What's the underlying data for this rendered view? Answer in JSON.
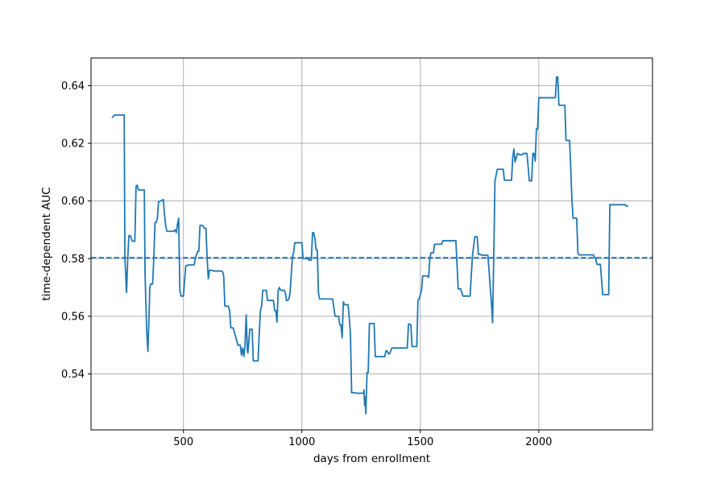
{
  "chart_data": {
    "type": "line",
    "title": "",
    "xlabel": "days from enrollment",
    "ylabel": "time-dependent AUC",
    "xlim": [
      110,
      2480
    ],
    "ylim": [
      0.5206,
      0.6496
    ],
    "xticks": [
      500,
      1000,
      1500,
      2000
    ],
    "xtick_labels": [
      "500",
      "1000",
      "1500",
      "2000"
    ],
    "yticks": [
      0.54,
      0.56,
      0.58,
      0.6,
      0.62,
      0.64
    ],
    "ytick_labels": [
      "0.54",
      "0.56",
      "0.58",
      "0.60",
      "0.62",
      "0.64"
    ],
    "grid": true,
    "legend": "none",
    "colors": {
      "line": "#1f77b4",
      "grid": "#b0b0b0",
      "axes": "#000000"
    },
    "reference_line": {
      "y": 0.5803,
      "style": "dashed"
    },
    "series": [
      {
        "x": [
          200,
          210,
          215,
          250,
          253,
          260,
          265,
          270,
          275,
          285,
          290,
          295,
          300,
          305,
          310,
          335,
          338,
          345,
          350,
          355,
          358,
          362,
          370,
          375,
          380,
          385,
          390,
          395,
          400,
          415,
          420,
          425,
          430,
          460,
          465,
          470,
          475,
          480,
          485,
          490,
          500,
          510,
          512,
          520,
          545,
          550,
          560,
          565,
          570,
          575,
          580,
          590,
          595,
          600,
          605,
          610,
          620,
          625,
          630,
          640,
          660,
          665,
          670,
          675,
          680,
          690,
          695,
          700,
          710,
          715,
          720,
          730,
          740,
          745,
          750,
          755,
          760,
          765,
          770,
          772,
          775,
          780,
          785,
          790,
          795,
          800,
          803,
          815,
          820,
          825,
          830,
          835,
          845,
          850,
          855,
          870,
          875,
          880,
          885,
          890,
          895,
          900,
          905,
          910,
          915,
          920,
          925,
          930,
          935,
          940,
          945,
          950,
          960,
          965,
          970,
          975,
          980,
          985,
          990,
          995,
          1000,
          1005,
          1010,
          1020,
          1025,
          1030,
          1035,
          1040,
          1045,
          1050,
          1055,
          1060,
          1065,
          1070,
          1075,
          1080,
          1085,
          1090,
          1095,
          1100,
          1110,
          1120,
          1130,
          1140,
          1145,
          1150,
          1155,
          1160,
          1165,
          1170,
          1175,
          1180,
          1185,
          1190,
          1195,
          1200,
          1205,
          1210,
          1220,
          1230,
          1250,
          1255,
          1260,
          1262,
          1265,
          1268,
          1270,
          1275,
          1280,
          1285,
          1290,
          1300,
          1305,
          1310,
          1320,
          1330,
          1340,
          1345,
          1350,
          1355,
          1360,
          1365,
          1370,
          1380,
          1385,
          1390,
          1400,
          1420,
          1430,
          1435,
          1440,
          1445,
          1450,
          1455,
          1460,
          1465,
          1470,
          1475,
          1480,
          1485,
          1490,
          1495,
          1500,
          1505,
          1510,
          1520,
          1525,
          1530,
          1535,
          1540,
          1545,
          1550,
          1555,
          1560,
          1570,
          1580,
          1590,
          1595,
          1600,
          1610,
          1620,
          1630,
          1640,
          1645,
          1650,
          1660,
          1665,
          1670,
          1680,
          1690,
          1700,
          1710,
          1720,
          1730,
          1740,
          1745,
          1750,
          1760,
          1765,
          1770,
          1775,
          1780,
          1785,
          1790,
          1795,
          1800,
          1802,
          1805,
          1810,
          1815,
          1820,
          1825,
          1830,
          1840,
          1850,
          1855,
          1860,
          1865,
          1870,
          1875,
          1880,
          1885,
          1890,
          1895,
          1900,
          1910,
          1920,
          1930,
          1935,
          1940,
          1945,
          1950,
          1955,
          1960,
          1965,
          1970,
          1975,
          1980,
          1985,
          1990,
          1995,
          2000,
          2010,
          2020,
          2030,
          2040,
          2050,
          2055,
          2060,
          2065,
          2070,
          2075,
          2080,
          2085,
          2090,
          2095,
          2100,
          2105,
          2110,
          2115,
          2120,
          2125,
          2130,
          2135,
          2140,
          2145,
          2150,
          2155,
          2160,
          2165,
          2170,
          2175,
          2180,
          2185,
          2190,
          2195,
          2200,
          2210,
          2220,
          2230,
          2240,
          2245,
          2250,
          2255,
          2260,
          2270,
          2280,
          2285,
          2290,
          2295,
          2300,
          2310,
          2320,
          2330,
          2340,
          2350,
          2360,
          2365,
          2370,
          2375
        ],
        "y": [
          0.629,
          0.6298,
          0.6298,
          0.6298,
          0.58,
          0.5683,
          0.58,
          0.588,
          0.588,
          0.586,
          0.586,
          0.586,
          0.605,
          0.6055,
          0.6038,
          0.6038,
          0.5748,
          0.555,
          0.5478,
          0.56,
          0.57,
          0.5712,
          0.5712,
          0.58,
          0.5925,
          0.5925,
          0.594,
          0.5998,
          0.5998,
          0.6005,
          0.5955,
          0.5915,
          0.5895,
          0.5895,
          0.59,
          0.589,
          0.592,
          0.594,
          0.569,
          0.567,
          0.567,
          0.5775,
          0.5775,
          0.5778,
          0.5778,
          0.58,
          0.5825,
          0.5825,
          0.5915,
          0.5915,
          0.5915,
          0.5905,
          0.5905,
          0.5803,
          0.573,
          0.576,
          0.576,
          0.5757,
          0.5757,
          0.5757,
          0.5757,
          0.5755,
          0.574,
          0.5635,
          0.5635,
          0.5635,
          0.562,
          0.556,
          0.556,
          0.5545,
          0.553,
          0.55,
          0.55,
          0.5465,
          0.549,
          0.546,
          0.55,
          0.5605,
          0.548,
          0.5473,
          0.55,
          0.5555,
          0.5555,
          0.5555,
          0.5445,
          0.5445,
          0.5445,
          0.5445,
          0.554,
          0.562,
          0.5635,
          0.569,
          0.569,
          0.569,
          0.5655,
          0.5655,
          0.5655,
          0.5655,
          0.562,
          0.562,
          0.558,
          0.569,
          0.57,
          0.569,
          0.569,
          0.569,
          0.569,
          0.5682,
          0.5655,
          0.5655,
          0.566,
          0.568,
          0.5805,
          0.582,
          0.5855,
          0.5855,
          0.5855,
          0.5855,
          0.5855,
          0.5855,
          0.5855,
          0.58,
          0.58,
          0.58,
          0.58,
          0.5795,
          0.5795,
          0.5795,
          0.589,
          0.589,
          0.587,
          0.583,
          0.583,
          0.568,
          0.566,
          0.566,
          0.566,
          0.566,
          0.566,
          0.566,
          0.566,
          0.566,
          0.566,
          0.56,
          0.56,
          0.56,
          0.56,
          0.557,
          0.557,
          0.5525,
          0.565,
          0.564,
          0.564,
          0.564,
          0.564,
          0.5595,
          0.554,
          0.5335,
          0.5335,
          0.5333,
          0.5333,
          0.5333,
          0.5333,
          0.5345,
          0.529,
          0.532,
          0.5262,
          0.5405,
          0.5405,
          0.5575,
          0.5575,
          0.5575,
          0.5575,
          0.546,
          0.546,
          0.546,
          0.546,
          0.546,
          0.546,
          0.548,
          0.548,
          0.547,
          0.547,
          0.549,
          0.549,
          0.549,
          0.549,
          0.549,
          0.549,
          0.549,
          0.549,
          0.549,
          0.5573,
          0.5573,
          0.557,
          0.5495,
          0.5495,
          0.5495,
          0.5495,
          0.5495,
          0.5655,
          0.566,
          0.5675,
          0.569,
          0.574,
          0.574,
          0.574,
          0.574,
          0.5735,
          0.58,
          0.582,
          0.582,
          0.582,
          0.585,
          0.585,
          0.585,
          0.585,
          0.5862,
          0.5862,
          0.5862,
          0.5862,
          0.5862,
          0.5862,
          0.5862,
          0.5862,
          0.5695,
          0.5695,
          0.5695,
          0.567,
          0.567,
          0.567,
          0.567,
          0.581,
          0.5876,
          0.5876,
          0.5815,
          0.5815,
          0.5812,
          0.5812,
          0.5812,
          0.5812,
          0.5812,
          0.5812,
          0.576,
          0.57,
          0.565,
          0.562,
          0.5578,
          0.581,
          0.607,
          0.609,
          0.611,
          0.611,
          0.611,
          0.611,
          0.6072,
          0.6072,
          0.6072,
          0.6072,
          0.6072,
          0.6072,
          0.6072,
          0.615,
          0.618,
          0.6135,
          0.6165,
          0.616,
          0.616,
          0.6165,
          0.6165,
          0.6165,
          0.6165,
          0.612,
          0.607,
          0.607,
          0.607,
          0.6165,
          0.6165,
          0.6138,
          0.625,
          0.625,
          0.6358,
          0.6358,
          0.6358,
          0.6358,
          0.6358,
          0.6358,
          0.6358,
          0.6358,
          0.6358,
          0.6358,
          0.643,
          0.643,
          0.6332,
          0.6332,
          0.6332,
          0.6332,
          0.6332,
          0.6332,
          0.621,
          0.621,
          0.621,
          0.621,
          0.611,
          0.6,
          0.594,
          0.594,
          0.594,
          0.594,
          0.582,
          0.5813,
          0.5813,
          0.5813,
          0.5813,
          0.5813,
          0.5813,
          0.5813,
          0.5813,
          0.5813,
          0.5813,
          0.58,
          0.578,
          0.578,
          0.578,
          0.578,
          0.5675,
          0.5675,
          0.5675,
          0.5675,
          0.5675,
          0.5987,
          0.5987,
          0.5987,
          0.5987,
          0.5987,
          0.5987,
          0.5987,
          0.5987,
          0.5982,
          0.5982
        ]
      }
    ]
  }
}
